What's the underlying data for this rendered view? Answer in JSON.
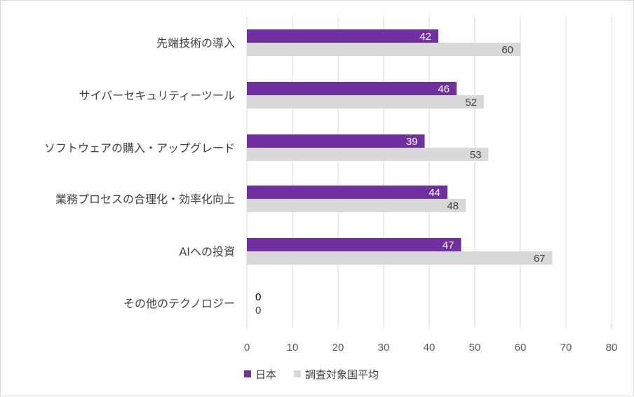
{
  "chart_data": {
    "type": "bar",
    "orientation": "horizontal",
    "categories": [
      "先端技術の導入",
      "サイバーセキュリティーツール",
      "ソフトウェアの購入・アップグレード",
      "業務プロセスの合理化・効率化向上",
      "AIへの投資",
      "その他のテクノロジー"
    ],
    "series": [
      {
        "name": "日本",
        "color": "#7030a0",
        "values": [
          42,
          46,
          39,
          44,
          47,
          0
        ]
      },
      {
        "name": "調査対象国平均",
        "color": "#d9d9d9",
        "values": [
          60,
          52,
          53,
          48,
          67,
          0
        ]
      }
    ],
    "xlim": [
      0,
      80
    ],
    "xticks": [
      0,
      10,
      20,
      30,
      40,
      50,
      60,
      70,
      80
    ],
    "grid": true,
    "legend_position": "bottom"
  }
}
